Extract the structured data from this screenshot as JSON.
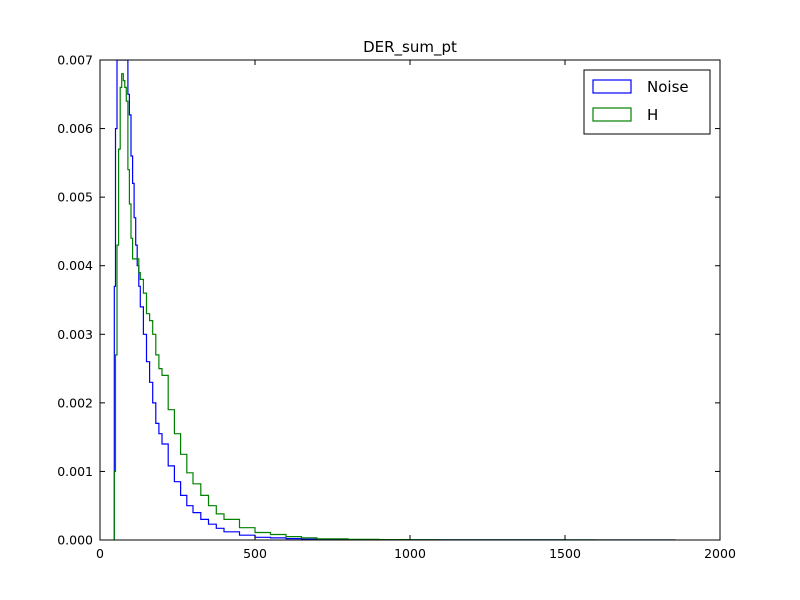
{
  "chart_data": {
    "type": "line",
    "title": "DER_sum_pt",
    "xlabel": "",
    "ylabel": "",
    "xlim": [
      0,
      2000
    ],
    "ylim": [
      0,
      0.007
    ],
    "x_ticks": [
      "0",
      "500",
      "1000",
      "1500",
      "2000"
    ],
    "y_ticks": [
      "0.000",
      "0.001",
      "0.002",
      "0.003",
      "0.004",
      "0.005",
      "0.006",
      "0.007"
    ],
    "grid": false,
    "legend_position": "top-right",
    "style": "step histogram (density)",
    "series": [
      {
        "name": "Noise",
        "color": "#0000ff",
        "x": [
          46,
          50,
          55,
          60,
          65,
          70,
          75,
          80,
          85,
          90,
          95,
          100,
          105,
          110,
          115,
          120,
          125,
          130,
          140,
          150,
          160,
          170,
          180,
          190,
          200,
          220,
          240,
          260,
          280,
          300,
          325,
          350,
          375,
          400,
          450,
          500,
          550,
          600,
          650,
          700,
          800,
          900,
          1000,
          1100,
          1200,
          1300,
          1400,
          1500,
          1600,
          1700,
          1800,
          1850
        ],
        "y": [
          0.0037,
          0.006,
          0.007,
          0.007,
          0.007,
          0.007,
          0.007,
          0.007,
          0.007,
          0.0065,
          0.0062,
          0.0056,
          0.0052,
          0.0047,
          0.0043,
          0.004,
          0.0037,
          0.0034,
          0.003,
          0.0026,
          0.0023,
          0.002,
          0.0017,
          0.00155,
          0.0014,
          0.00108,
          0.00085,
          0.00065,
          0.0005,
          0.0004,
          0.0003,
          0.00023,
          0.00017,
          0.00012,
          7e-05,
          4e-05,
          3e-05,
          2e-05,
          1.2e-05,
          8e-06,
          5e-06,
          3e-06,
          2e-06,
          1.5e-06,
          1e-06,
          1e-06,
          8e-07,
          6e-07,
          5e-07,
          4e-07,
          3e-07,
          2e-07
        ]
      },
      {
        "name": "H",
        "color": "#008000",
        "x": [
          46,
          50,
          55,
          60,
          65,
          70,
          75,
          80,
          85,
          90,
          95,
          100,
          105,
          110,
          115,
          120,
          125,
          130,
          140,
          150,
          160,
          170,
          180,
          190,
          200,
          220,
          240,
          260,
          280,
          300,
          325,
          350,
          375,
          400,
          450,
          500,
          550,
          600,
          650,
          700,
          800,
          900,
          1000,
          1100,
          1200,
          1300,
          1400,
          1500,
          1600,
          1700,
          1800,
          1850
        ],
        "y": [
          0.001,
          0.0027,
          0.0043,
          0.0057,
          0.0066,
          0.0068,
          0.0067,
          0.0066,
          0.0064,
          0.0054,
          0.0049,
          0.0044,
          0.0041,
          0.0041,
          0.0041,
          0.0041,
          0.0039,
          0.0038,
          0.0036,
          0.0033,
          0.0032,
          0.003,
          0.0027,
          0.0025,
          0.0024,
          0.0019,
          0.00155,
          0.00125,
          0.00098,
          0.00082,
          0.00065,
          0.0005,
          0.00038,
          0.0003,
          0.00018,
          0.00011,
          8e-05,
          5e-05,
          3e-05,
          1.8e-05,
          1e-05,
          6e-06,
          4e-06,
          3e-06,
          2e-06,
          1.5e-06,
          1e-06,
          8e-07,
          6e-07,
          4e-07,
          3e-07,
          2e-07
        ]
      }
    ]
  }
}
